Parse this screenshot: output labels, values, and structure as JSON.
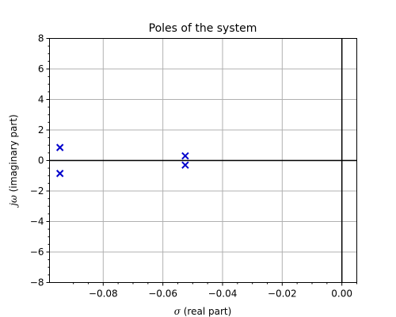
{
  "chart_data": {
    "type": "scatter",
    "title": "Poles of the system",
    "xlabel_symbol": "σ",
    "xlabel_text": " (real part)",
    "ylabel_symbol": "jω",
    "ylabel_text": " (imaginary part)",
    "xlim": [
      -0.098,
      0.005
    ],
    "ylim": [
      -8,
      8
    ],
    "xticks": [
      -0.08,
      -0.06,
      -0.04,
      -0.02,
      0.0
    ],
    "xtick_labels": [
      "−0.08",
      "−0.06",
      "−0.04",
      "−0.02",
      "0.00"
    ],
    "yticks": [
      -8,
      -6,
      -4,
      -2,
      0,
      2,
      4,
      6,
      8
    ],
    "ytick_labels": [
      "−8",
      "−6",
      "−4",
      "−2",
      "0",
      "2",
      "4",
      "6",
      "8"
    ],
    "grid": true,
    "marker": "x",
    "color": "#0000cc",
    "points": [
      {
        "x": -0.0945,
        "y": 0.85
      },
      {
        "x": -0.0945,
        "y": -0.85
      },
      {
        "x": -0.0525,
        "y": 0.3
      },
      {
        "x": -0.0525,
        "y": -0.3
      }
    ]
  }
}
